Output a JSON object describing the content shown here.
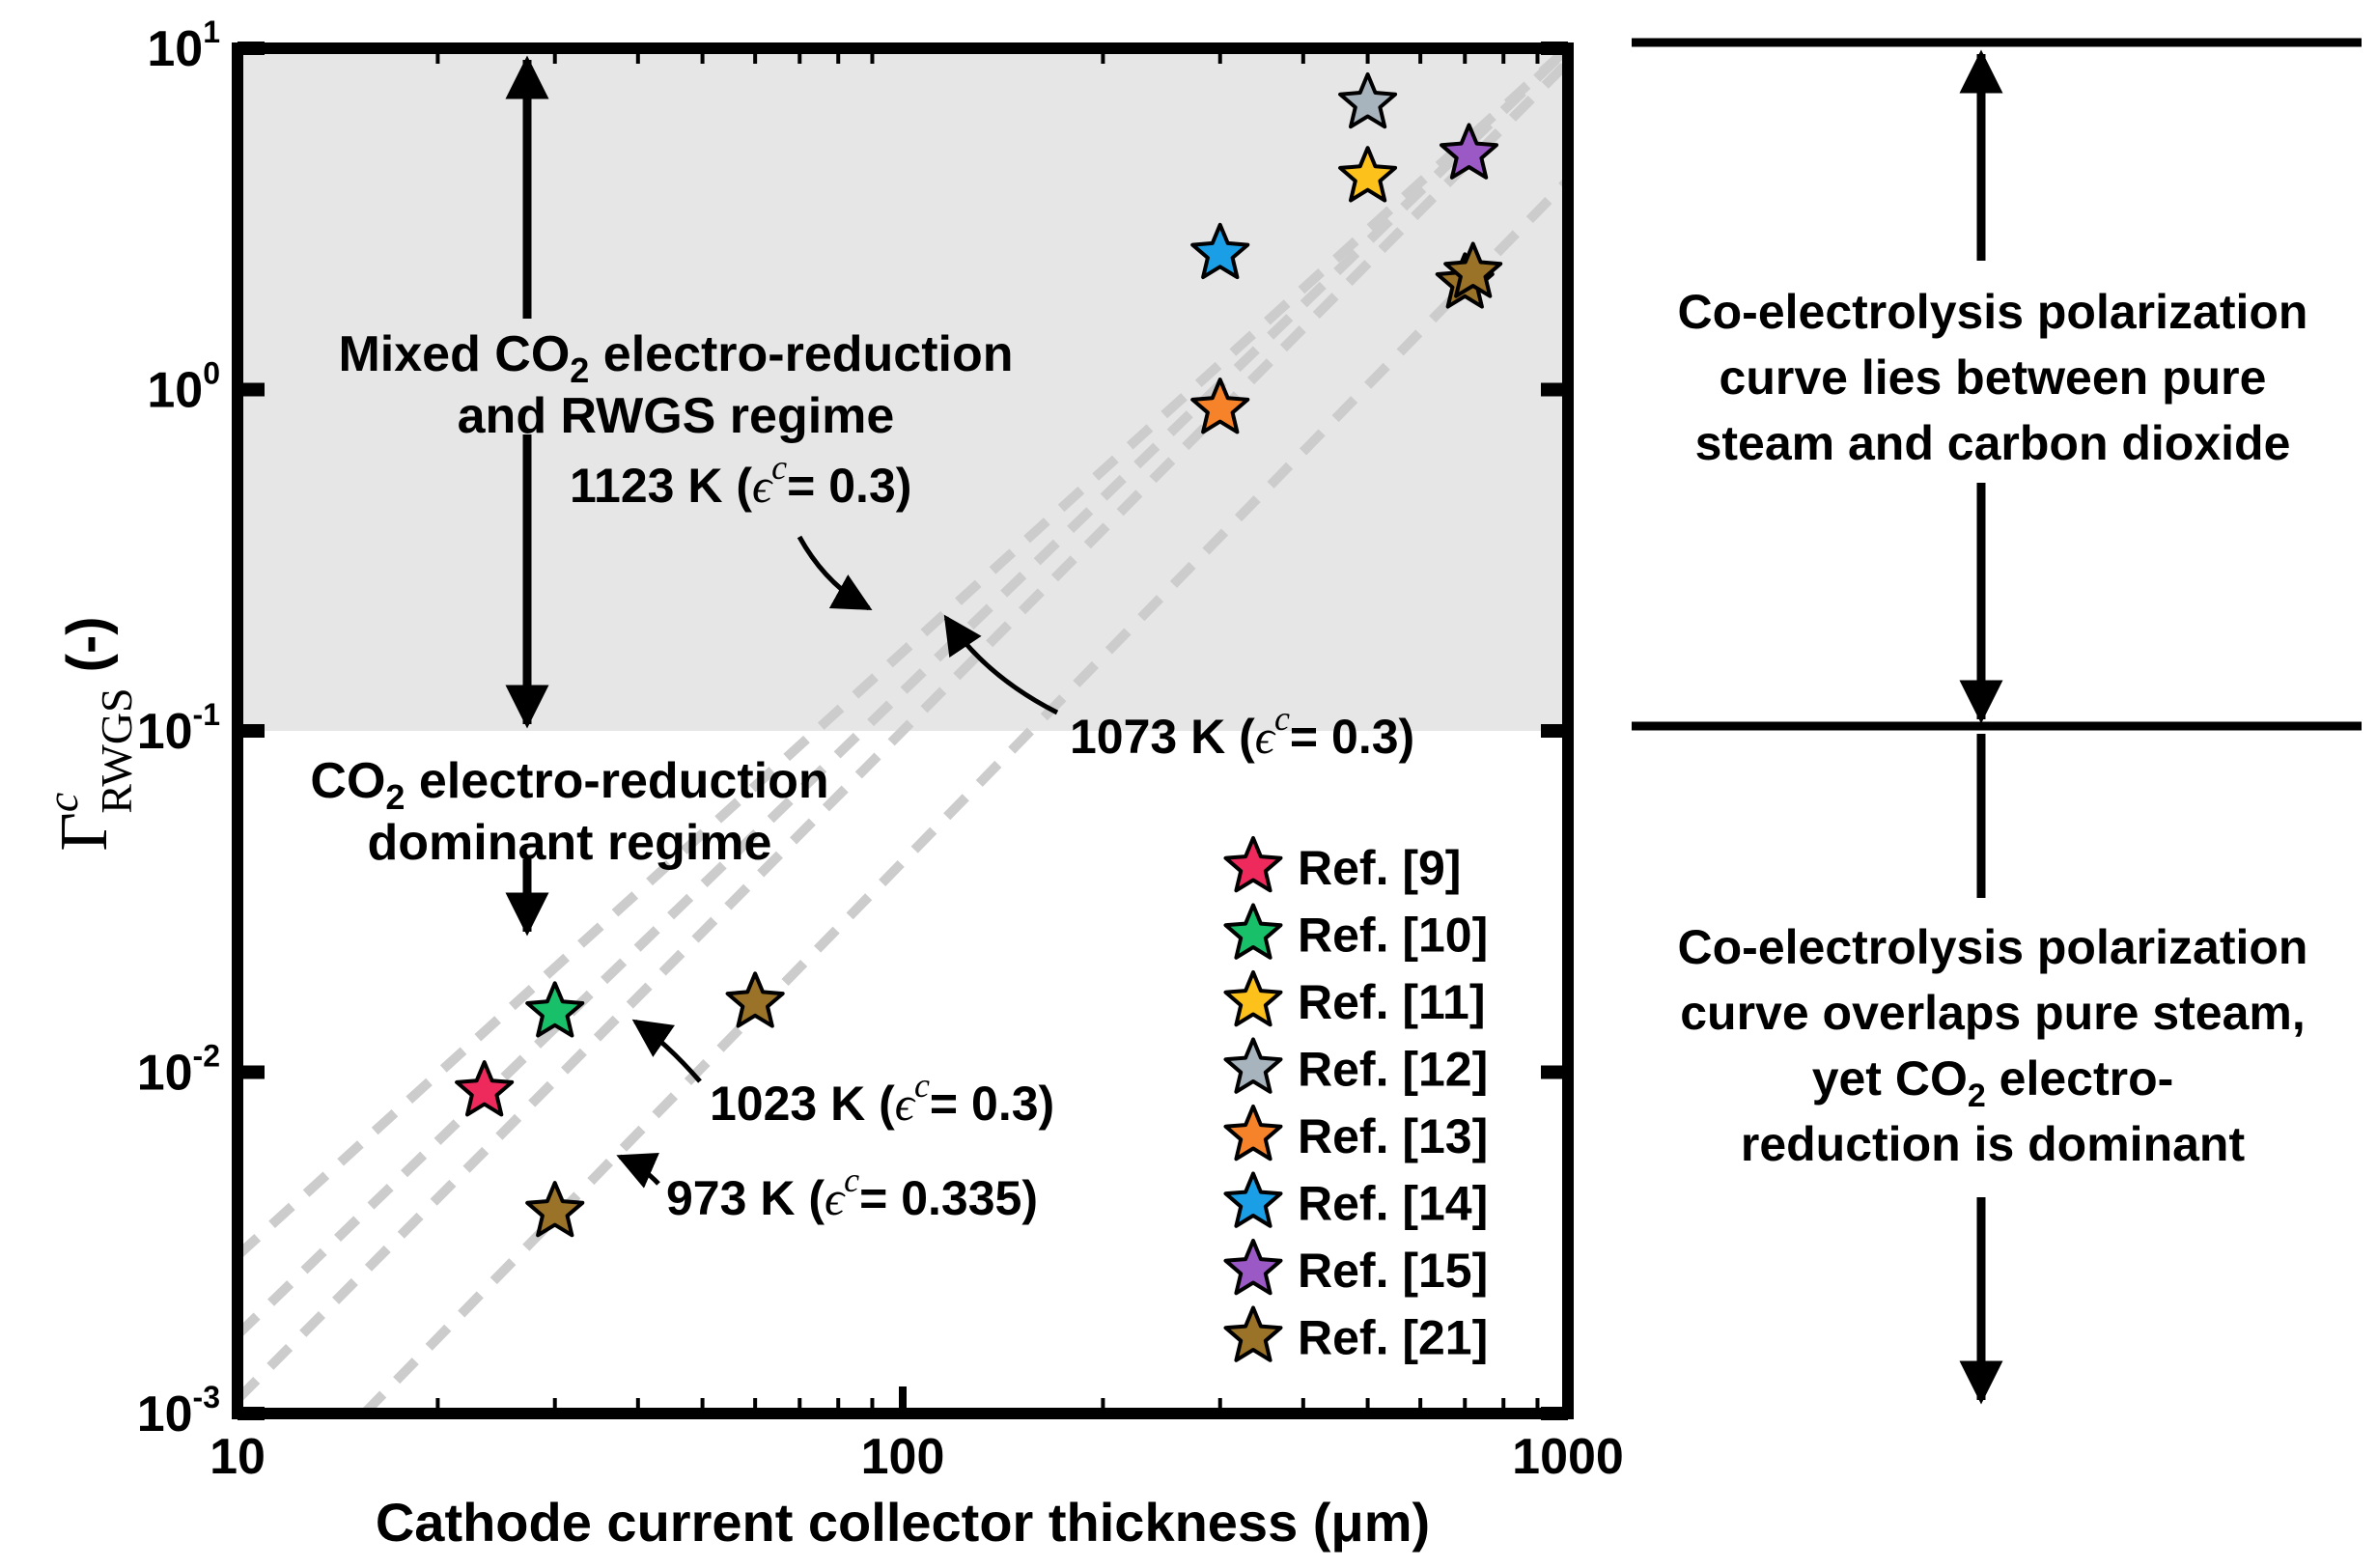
{
  "chart_data": {
    "type": "scatter",
    "xscale": "log",
    "yscale": "log",
    "xlim": [
      10,
      1000
    ],
    "ylim": [
      0.001,
      10
    ],
    "xlabel": "Cathode current collector thickness (μm)",
    "ylabel_symbol": "Γ",
    "ylabel_sup": "c",
    "ylabel_sub": "RWGS",
    "ylabel_suffix": "(-)",
    "x_ticks": [
      {
        "value": 10,
        "label": "10"
      },
      {
        "value": 100,
        "label": "100"
      },
      {
        "value": 1000,
        "label": "1000"
      }
    ],
    "y_ticks": [
      {
        "value": 10,
        "base": "10",
        "exp": "1"
      },
      {
        "value": 1,
        "base": "10",
        "exp": "0"
      },
      {
        "value": 0.1,
        "base": "10",
        "exp": "-1"
      },
      {
        "value": 0.01,
        "base": "10",
        "exp": "-2"
      },
      {
        "value": 0.001,
        "base": "10",
        "exp": "-3"
      }
    ],
    "shaded_region": {
      "y_from": 0.1,
      "y_to": 10,
      "color": "#e6e6e6"
    },
    "reference_lines": [
      {
        "label": "1123 K",
        "eps": "0.3",
        "points": [
          [
            10,
            0.0029
          ],
          [
            1000,
            10
          ]
        ]
      },
      {
        "label": "1073 K",
        "eps": "0.3",
        "points": [
          [
            10,
            0.0017
          ],
          [
            1000,
            10
          ]
        ]
      },
      {
        "label": "1023 K",
        "eps": "0.3",
        "points": [
          [
            10,
            0.0011
          ],
          [
            1000,
            9.1
          ]
        ]
      },
      {
        "label": "973 K",
        "eps": "0.335",
        "points": [
          [
            15.5,
            0.001
          ],
          [
            1000,
            4.1
          ]
        ]
      }
    ],
    "series": [
      {
        "name": "Ref. [9]",
        "color": "#ee2a5c",
        "points": [
          [
            23.5,
            0.0088
          ]
        ]
      },
      {
        "name": "Ref. [10]",
        "color": "#18c06a",
        "points": [
          [
            30,
            0.015
          ]
        ]
      },
      {
        "name": "Ref. [11]",
        "color": "#fcc21b",
        "points": [
          [
            500,
            4.2
          ]
        ]
      },
      {
        "name": "Ref. [12]",
        "color": "#a7b4bd",
        "points": [
          [
            500,
            6.9
          ]
        ]
      },
      {
        "name": "Ref. [13]",
        "color": "#f6832a",
        "points": [
          [
            300,
            0.88
          ]
        ]
      },
      {
        "name": "Ref. [14]",
        "color": "#1a9ee6",
        "points": [
          [
            300,
            2.5
          ]
        ]
      },
      {
        "name": "Ref. [15]",
        "color": "#9b59c5",
        "points": [
          [
            710,
            4.9
          ]
        ]
      },
      {
        "name": "Ref. [21]",
        "color": "#9a7228",
        "points": [
          [
            60,
            0.016
          ],
          [
            30,
            0.0039
          ],
          [
            700,
            2.05
          ],
          [
            720,
            2.2
          ]
        ]
      }
    ],
    "annotations": {
      "t1123": {
        "temp": "1123 K (",
        "eps_sym": "ϵ",
        "eps_sup": "c",
        "eq": "= 0.3)"
      },
      "t1073": {
        "temp": "1073 K (",
        "eps_sym": "ϵ",
        "eps_sup": "c",
        "eq": "= 0.3)"
      },
      "t1023": {
        "temp": "1023 K (",
        "eps_sym": "ϵ",
        "eps_sup": "c",
        "eq": "= 0.3)"
      },
      "t973": {
        "temp": "973 K (",
        "eps_sym": "ϵ",
        "eps_sup": "c",
        "eq": "= 0.335)"
      }
    },
    "regimes": {
      "mixed": {
        "line1_pre": "Mixed CO",
        "line1_sub": "2",
        "line1_post": " electro-reduction",
        "line2": "and RWGS regime"
      },
      "dominant": {
        "line1_pre": "CO",
        "line1_sub": "2",
        "line1_post": " electro-reduction",
        "line2": "dominant regime"
      }
    },
    "side_notes": {
      "upper": [
        "Co-electrolysis polarization",
        "curve lies between pure",
        "steam and carbon dioxide"
      ],
      "lower": {
        "line1": "Co-electrolysis polarization",
        "line2": "curve overlaps pure steam,",
        "line3_pre": "yet CO",
        "line3_sub": "2",
        "line3_post": " electro-",
        "line4": "reduction is dominant"
      }
    }
  }
}
